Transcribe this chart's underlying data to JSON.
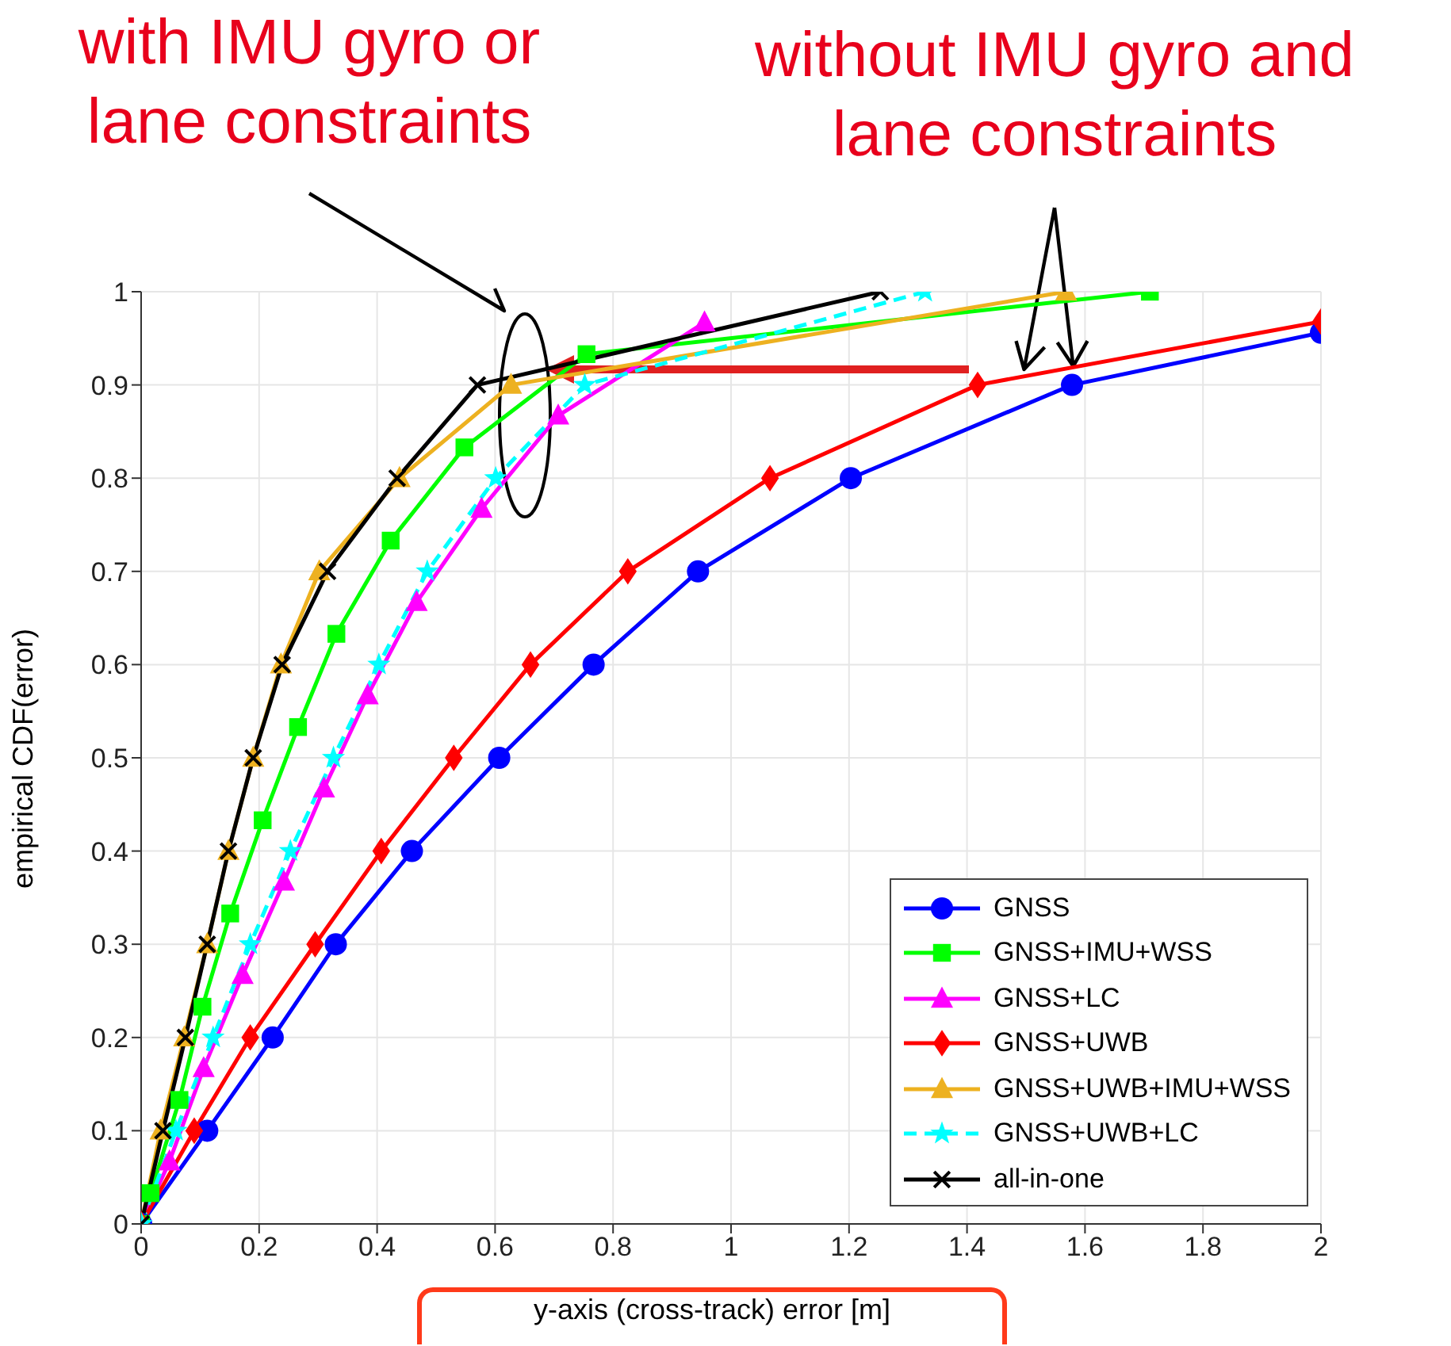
{
  "chart_data": {
    "type": "line",
    "xlabel": "y-axis (cross-track) error [m]",
    "ylabel": "empirical CDF(error)",
    "annotations": [
      "with IMU gyro or lane constraints",
      {
        "text": "without IMU gyro and lane constraints",
        "x": 1.58,
        "y": 0.92
      }
    ],
    "xlim": [
      0,
      2
    ],
    "xticks": [
      0,
      0.2,
      0.4,
      0.6,
      0.8,
      1,
      1.2,
      1.4,
      1.6,
      1.8,
      2
    ],
    "ylim": [
      0,
      1
    ],
    "yticks": [
      0,
      0.1,
      0.2,
      0.3,
      0.4,
      0.5,
      0.6,
      0.7,
      0.8,
      0.9,
      1
    ],
    "grid": true,
    "legend": "bottom right",
    "line_style": "solid",
    "series": [
      {
        "name": "GNSS",
        "color": "#0000ff",
        "marker": "circle",
        "x": [
          0,
          0.112,
          0.223,
          0.33,
          0.459,
          0.607,
          0.767,
          0.944,
          1.203,
          1.578,
          2
        ],
        "values": [
          0,
          0.1,
          0.2,
          0.3,
          0.4,
          0.5,
          0.6,
          0.7,
          0.8,
          0.9,
          0.956
        ]
      },
      {
        "name": "GNSS+IMU+WSS",
        "color": "#00ff00",
        "marker": "square",
        "x": [
          0,
          0.016,
          0.065,
          0.104,
          0.151,
          0.206,
          0.266,
          0.331,
          0.423,
          0.548,
          0.755,
          1.71
        ],
        "values": [
          0,
          0.033,
          0.133,
          0.233,
          0.333,
          0.433,
          0.533,
          0.633,
          0.733,
          0.833,
          0.933,
          1
        ]
      },
      {
        "name": "GNSS+LC",
        "color": "#ff00ff",
        "marker": "triangle",
        "x": [
          0,
          0.048,
          0.106,
          0.172,
          0.242,
          0.31,
          0.384,
          0.467,
          0.577,
          0.707,
          0.955
        ],
        "values": [
          0,
          0.067,
          0.167,
          0.267,
          0.367,
          0.467,
          0.567,
          0.667,
          0.767,
          0.867,
          0.967
        ]
      },
      {
        "name": "GNSS+UWB",
        "color": "#ff0000",
        "marker": "diamond",
        "x": [
          0,
          0.09,
          0.185,
          0.295,
          0.407,
          0.53,
          0.66,
          0.825,
          1.066,
          1.418,
          2
        ],
        "values": [
          0,
          0.1,
          0.2,
          0.3,
          0.4,
          0.5,
          0.6,
          0.7,
          0.8,
          0.9,
          0.968
        ]
      },
      {
        "name": "GNSS+UWB+IMU+WSS",
        "color": "#edb120",
        "marker": "triangle",
        "x": [
          0,
          0.033,
          0.073,
          0.112,
          0.148,
          0.19,
          0.237,
          0.302,
          0.438,
          0.627,
          1.568
        ],
        "values": [
          0,
          0.1,
          0.2,
          0.3,
          0.4,
          0.5,
          0.6,
          0.7,
          0.8,
          0.9,
          1
        ]
      },
      {
        "name": "GNSS+UWB+LC",
        "color": "#00ffff",
        "marker": "star",
        "line_style": "dashed",
        "x": [
          0,
          0.059,
          0.122,
          0.185,
          0.253,
          0.326,
          0.403,
          0.485,
          0.601,
          0.752,
          1.329
        ],
        "values": [
          0,
          0.1,
          0.2,
          0.3,
          0.4,
          0.5,
          0.6,
          0.7,
          0.8,
          0.9,
          1
        ]
      },
      {
        "name": "all-in-one",
        "color": "#000000",
        "marker": "cross",
        "x": [
          0,
          0.037,
          0.075,
          0.112,
          0.148,
          0.19,
          0.239,
          0.316,
          0.434,
          0.57,
          1.253
        ],
        "values": [
          0,
          0.1,
          0.2,
          0.3,
          0.4,
          0.5,
          0.6,
          0.7,
          0.8,
          0.9,
          1
        ]
      }
    ]
  }
}
